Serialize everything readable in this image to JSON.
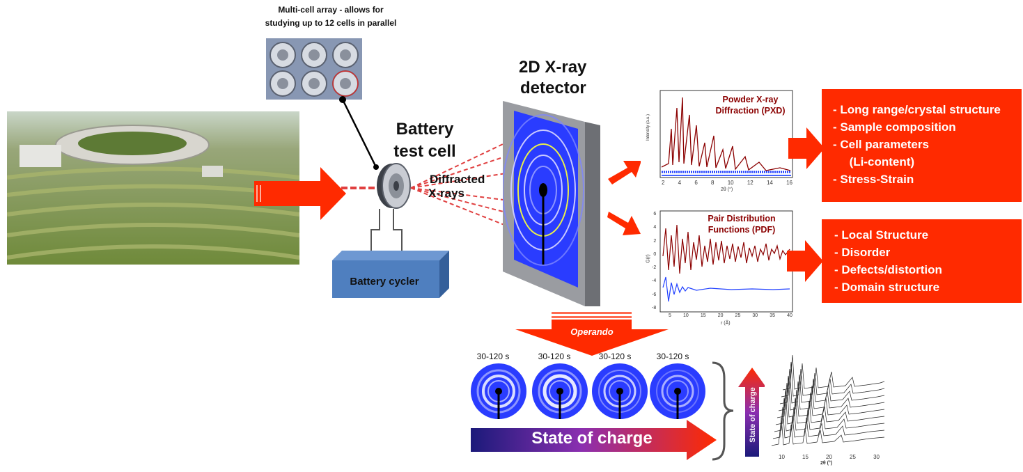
{
  "multicell_caption": [
    "Multi-cell array - allows for",
    "studying up to 12 cells in parallel"
  ],
  "battery_test_cell": [
    "Battery",
    "test cell"
  ],
  "diffracted_xrays": [
    "Diffracted",
    "X-rays"
  ],
  "detector_label": [
    "2D X-ray",
    "detector"
  ],
  "battery_cycler": "Battery cycler",
  "pxd_plot": {
    "title": [
      "Powder X-ray",
      "Diffraction (PXD)"
    ],
    "ylabel": "Intensity (a.u.)",
    "xlabel": "2θ (°)",
    "xticks": [
      "2",
      "4",
      "6",
      "8",
      "10",
      "12",
      "14",
      "16"
    ]
  },
  "pdf_plot": {
    "title": [
      "Pair Distribution",
      "Functions (PDF)"
    ],
    "ylabel": "G(r)",
    "xlabel": "r (Å)",
    "xticks": [
      "5",
      "10",
      "15",
      "20",
      "25",
      "30",
      "35",
      "40"
    ],
    "yticks": [
      "6",
      "4",
      "2",
      "0",
      "-2",
      "-4",
      "-6",
      "-8"
    ]
  },
  "pxd_info": [
    "- Long range/crystal structure",
    "- Sample composition",
    "- Cell parameters",
    "     (Li-content)",
    "- Stress-Strain"
  ],
  "pdf_info": [
    "- Local Structure",
    "- Disorder",
    "- Defects/distortion",
    "- Domain structure"
  ],
  "operando_label": "Operando",
  "time_labels": [
    "30-120 s",
    "30-120 s",
    "30-120 s",
    "30-120 s"
  ],
  "state_of_charge": "State of charge",
  "waterfall": {
    "ylabel": "State of charge",
    "xlabel": "2θ (°)",
    "xticks": [
      "10",
      "15",
      "20",
      "25",
      "30"
    ]
  },
  "colors": {
    "accent_red": "#ff2a00",
    "detector_blue": "#2a3cff",
    "cycler_blue": "#4f7fbf"
  }
}
